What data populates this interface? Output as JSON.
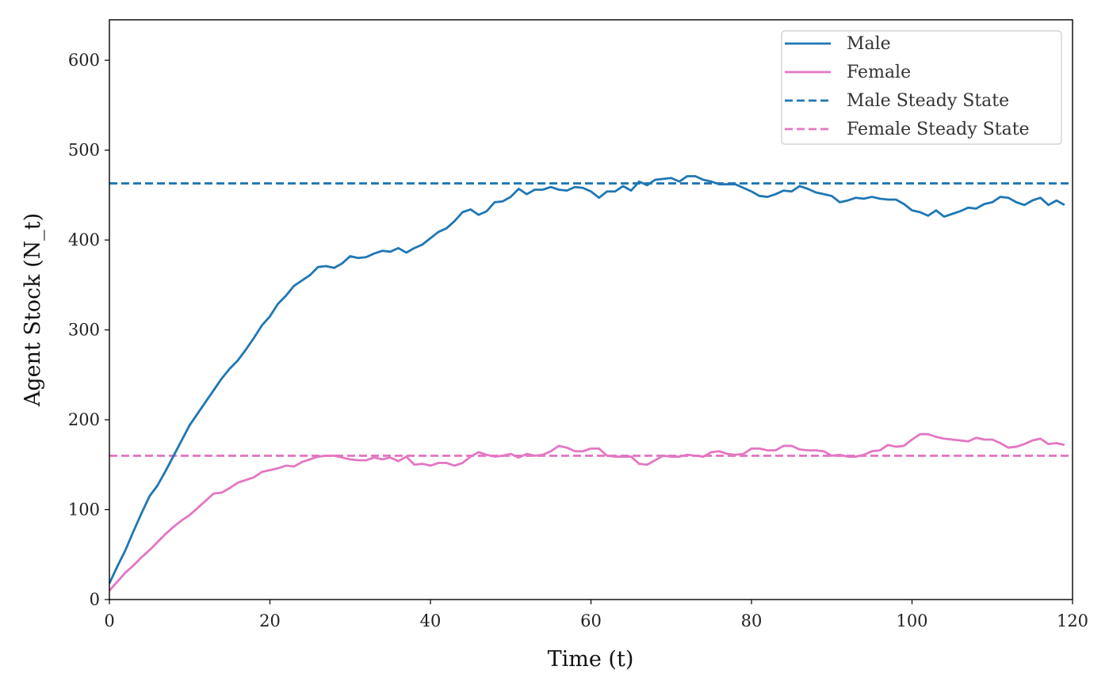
{
  "chart_data": {
    "type": "line",
    "title": "",
    "xlabel": "Time (t)",
    "ylabel": "Agent Stock (N_t)",
    "xlim": [
      0,
      120
    ],
    "ylim": [
      0,
      645
    ],
    "xticks": [
      0,
      20,
      40,
      60,
      80,
      100,
      120
    ],
    "yticks": [
      0,
      100,
      200,
      300,
      400,
      500,
      600
    ],
    "grid": false,
    "legend_position": "top-right",
    "x": [
      0,
      1,
      2,
      3,
      4,
      5,
      6,
      7,
      8,
      9,
      10,
      11,
      12,
      13,
      14,
      15,
      16,
      17,
      18,
      19,
      20,
      21,
      22,
      23,
      24,
      25,
      26,
      27,
      28,
      29,
      30,
      31,
      32,
      33,
      34,
      35,
      36,
      37,
      38,
      39,
      40,
      41,
      42,
      43,
      44,
      45,
      46,
      47,
      48,
      49,
      50,
      51,
      52,
      53,
      54,
      55,
      56,
      57,
      58,
      59,
      60,
      61,
      62,
      63,
      64,
      65,
      66,
      67,
      68,
      69,
      70,
      71,
      72,
      73,
      74,
      75,
      76,
      77,
      78,
      79,
      80,
      81,
      82,
      83,
      84,
      85,
      86,
      87,
      88,
      89,
      90,
      91,
      92,
      93,
      94,
      95,
      96,
      97,
      98,
      99,
      100,
      101,
      102,
      103,
      104,
      105,
      106,
      107,
      108,
      109,
      110,
      111,
      112,
      113,
      114,
      115,
      116,
      117,
      118,
      119
    ],
    "series": [
      {
        "name": "Male",
        "color": "#1f77b4",
        "style": "solid",
        "values": [
          18,
          37,
          55,
          76,
          96,
          115,
          127,
          143,
          160,
          177,
          194,
          207,
          220,
          233,
          246,
          257,
          266,
          278,
          291,
          305,
          315,
          329,
          338,
          349,
          355,
          361,
          370,
          371,
          369,
          374,
          382,
          380,
          381,
          385,
          388,
          387,
          391,
          386,
          391,
          395,
          402,
          409,
          413,
          421,
          431,
          434,
          428,
          432,
          442,
          443,
          448,
          457,
          451,
          456,
          456,
          459,
          456,
          455,
          459,
          458,
          454,
          447,
          454,
          454,
          460,
          455,
          465,
          461,
          467,
          468,
          469,
          465,
          471,
          471,
          467,
          465,
          462,
          462,
          462,
          458,
          454,
          449,
          448,
          451,
          455,
          454,
          460,
          457,
          453,
          451,
          449,
          442,
          444,
          447,
          446,
          448,
          446,
          445,
          445,
          440,
          433,
          431,
          427,
          433,
          426,
          429,
          432,
          436,
          435,
          440,
          442,
          448,
          447,
          442,
          439,
          444,
          447,
          439,
          444,
          439
        ]
      },
      {
        "name": "Female",
        "color": "#e377c2",
        "style": "solid",
        "values": [
          10,
          20,
          30,
          38,
          47,
          55,
          64,
          73,
          81,
          88,
          94,
          102,
          110,
          118,
          119,
          124,
          130,
          133,
          136,
          142,
          144,
          146,
          149,
          148,
          153,
          156,
          159,
          160,
          160,
          158,
          156,
          155,
          155,
          158,
          156,
          158,
          154,
          159,
          150,
          151,
          149,
          152,
          152,
          149,
          152,
          159,
          164,
          161,
          159,
          160,
          162,
          158,
          162,
          160,
          161,
          165,
          171,
          169,
          165,
          165,
          168,
          168,
          160,
          159,
          159,
          159,
          151,
          150,
          155,
          160,
          159,
          159,
          161,
          160,
          159,
          164,
          165,
          162,
          161,
          162,
          168,
          168,
          166,
          166,
          171,
          171,
          167,
          166,
          166,
          165,
          160,
          161,
          159,
          159,
          161,
          165,
          166,
          172,
          170,
          171,
          178,
          184,
          184,
          181,
          179,
          178,
          177,
          176,
          180,
          178,
          178,
          174,
          169,
          170,
          173,
          177,
          179,
          173,
          174,
          172
        ]
      },
      {
        "name": "Male Steady State",
        "color": "#1f77b4",
        "style": "dashed",
        "constant": 463
      },
      {
        "name": "Female Steady State",
        "color": "#e377c2",
        "style": "dashed",
        "constant": 160
      }
    ]
  }
}
